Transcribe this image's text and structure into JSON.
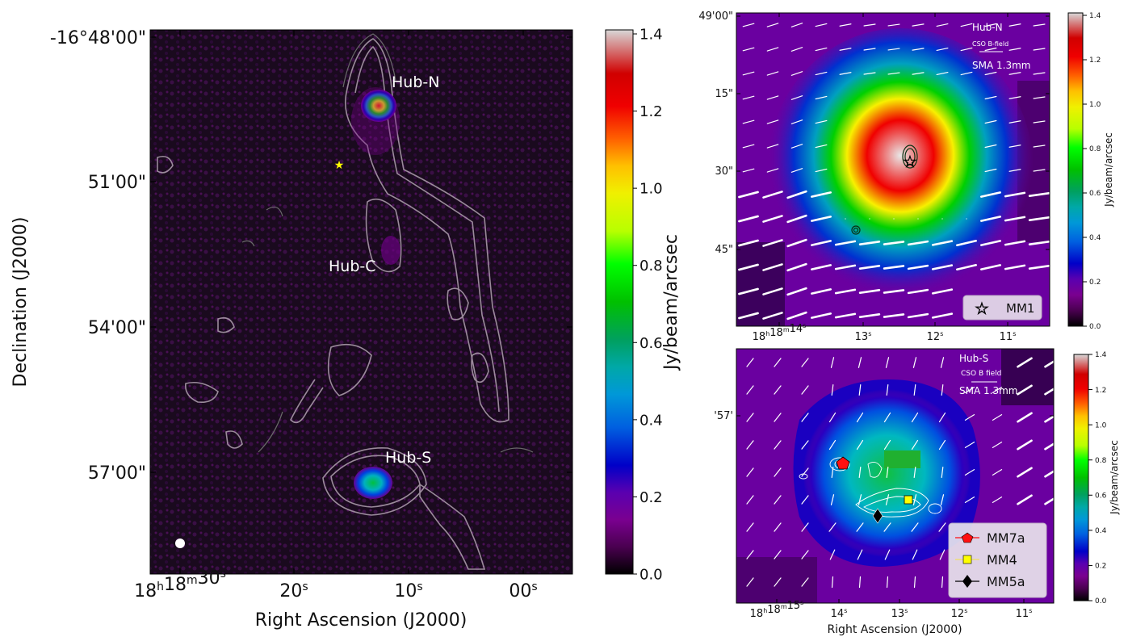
{
  "chart_data": [
    {
      "type": "heatmap",
      "panel": "main",
      "xlabel": "Right Ascension (J2000)",
      "ylabel": "Declination (J2000)",
      "x_ticks": [
        {
          "main": "18",
          "sup": "h",
          "main2": "18",
          "sup2": "m",
          "main3": "30",
          "sup3": "s"
        },
        {
          "main": "20",
          "sup": "s"
        },
        {
          "main": "10",
          "sup": "s"
        },
        {
          "main": "00",
          "sup": "s"
        }
      ],
      "y_ticks": [
        "-16°48'00\"",
        "51'00\"",
        "54'00\"",
        "57'00\""
      ],
      "colorbar": {
        "label": "Jy/beam/arcsec",
        "ticks": [
          "0.0",
          "0.2",
          "0.4",
          "0.6",
          "0.8",
          "1.0",
          "1.2",
          "1.4"
        ],
        "range": [
          0.0,
          1.4
        ]
      },
      "annotations": [
        "Hub-N",
        "Hub-C",
        "Hub-S"
      ],
      "markers": [
        {
          "name": "star",
          "color": "#ffff00"
        },
        {
          "name": "beam",
          "color": "#ffffff"
        }
      ],
      "cmap": "nipy_spectral"
    },
    {
      "type": "heatmap",
      "panel": "top-right",
      "xlabel": "",
      "ylabel": "",
      "x_ticks": [
        {
          "main": "18",
          "sup": "h",
          "main2": "18",
          "sup2": "m",
          "main3": "14",
          "sup3": "s"
        },
        {
          "main": "13",
          "sup": "s"
        },
        {
          "main": "12",
          "sup": "s"
        },
        {
          "main": "11",
          "sup": "s"
        }
      ],
      "y_ticks": [
        "49'00\"",
        "15\"",
        "30\"",
        "45\""
      ],
      "colorbar": {
        "label": "Jy/beam/arcsec",
        "ticks": [
          "0.0",
          "0.2",
          "0.4",
          "0.6",
          "0.8",
          "1.0",
          "1.2",
          "1.4"
        ],
        "range": [
          0.0,
          1.4
        ]
      },
      "annotations": [
        "Hub-N",
        "CSO B-field",
        "SMA 1.3mm"
      ],
      "legend": [
        {
          "label": "MM1",
          "marker": "star"
        }
      ],
      "legend_position": "lower-right"
    },
    {
      "type": "heatmap",
      "panel": "bottom-right",
      "xlabel": "Right Ascension (J2000)",
      "ylabel": "",
      "x_ticks": [
        {
          "main": "18",
          "sup": "h",
          "main2": "18",
          "sup2": "m",
          "main3": "15",
          "sup3": "s"
        },
        {
          "main": "14",
          "sup": "s"
        },
        {
          "main": "13",
          "sup": "s"
        },
        {
          "main": "12",
          "sup": "s"
        },
        {
          "main": "11",
          "sup": "s"
        }
      ],
      "y_ticks": [
        "'57'"
      ],
      "colorbar": {
        "label": "Jy/beam/arcsec",
        "ticks": [
          "0.0",
          "0.2",
          "0.4",
          "0.6",
          "0.8",
          "1.0",
          "1.2",
          "1.4"
        ],
        "range": [
          0.0,
          1.4
        ]
      },
      "annotations": [
        "Hub-S",
        "CSO B field",
        "SMA 1.3mm"
      ],
      "legend": [
        {
          "label": "MM7a",
          "marker": "pentagon",
          "color": "#ff1010"
        },
        {
          "label": "MM4",
          "marker": "square",
          "color": "#ffff00"
        },
        {
          "label": "MM5a",
          "marker": "diamond",
          "color": "#000000"
        }
      ],
      "legend_position": "lower-right"
    }
  ]
}
